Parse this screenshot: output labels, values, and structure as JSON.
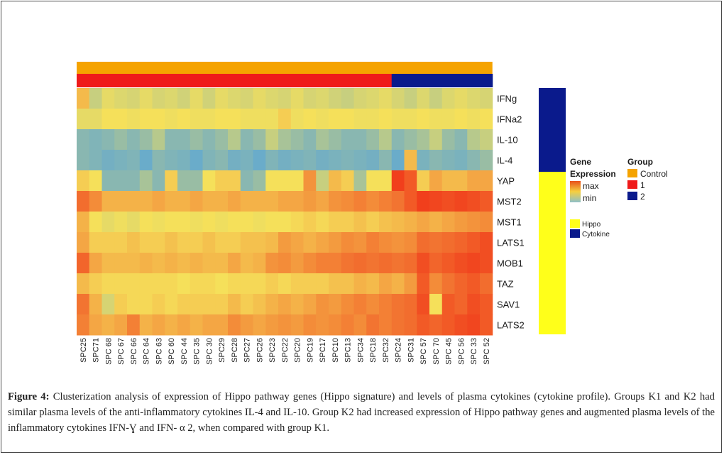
{
  "chart_data": {
    "type": "heatmap",
    "rows": [
      "IFNg",
      "IFNa2",
      "IL-10",
      "IL-4",
      "YAP",
      "MST2",
      "MST1",
      "LATS1",
      "MOB1",
      "TAZ",
      "SAV1",
      "LATS2"
    ],
    "row_category": [
      "Cytokine",
      "Cytokine",
      "Cytokine",
      "Cytokine",
      "Hippo",
      "Hippo",
      "Hippo",
      "Hippo",
      "Hippo",
      "Hippo",
      "Hippo",
      "Hippo"
    ],
    "columns": [
      "SPC25",
      "SPC71",
      "SPC 68",
      "SPC 67",
      "SPC 66",
      "SPC 64",
      "SPC 63",
      "SPC 60",
      "SPC 44",
      "SPC 35",
      "SPC 30",
      "SPC29",
      "SPC28",
      "SPC27",
      "SPC26",
      "SPC23",
      "SPC22",
      "SPC20",
      "SPC19",
      "SPC17",
      "SPC10",
      "SPC13",
      "SPC34",
      "SPC18",
      "SPC32",
      "SPC24",
      "SPC31",
      "SPC 57",
      "SPC 70",
      "SPC 45",
      "SPC 56",
      "SPC 33",
      "SPC 52"
    ],
    "column_group": [
      "1",
      "1",
      "1",
      "1",
      "1",
      "1",
      "1",
      "1",
      "1",
      "1",
      "1",
      "1",
      "1",
      "1",
      "1",
      "1",
      "1",
      "1",
      "1",
      "1",
      "1",
      "1",
      "1",
      "1",
      "1",
      "2",
      "2",
      "2",
      "2",
      "2",
      "2",
      "2",
      "2"
    ],
    "values": [
      [
        0.6,
        0.35,
        0.45,
        0.42,
        0.4,
        0.45,
        0.4,
        0.42,
        0.38,
        0.45,
        0.38,
        0.45,
        0.42,
        0.4,
        0.45,
        0.42,
        0.4,
        0.45,
        0.4,
        0.42,
        0.38,
        0.35,
        0.4,
        0.42,
        0.45,
        0.4,
        0.35,
        0.42,
        0.35,
        0.42,
        0.45,
        0.42,
        0.4
      ],
      [
        0.45,
        0.45,
        0.5,
        0.5,
        0.48,
        0.5,
        0.5,
        0.48,
        0.5,
        0.48,
        0.48,
        0.5,
        0.5,
        0.48,
        0.48,
        0.48,
        0.55,
        0.48,
        0.5,
        0.48,
        0.5,
        0.5,
        0.48,
        0.48,
        0.5,
        0.48,
        0.48,
        0.5,
        0.48,
        0.48,
        0.5,
        0.48,
        0.5
      ],
      [
        0.15,
        0.12,
        0.15,
        0.2,
        0.15,
        0.2,
        0.3,
        0.15,
        0.15,
        0.2,
        0.15,
        0.2,
        0.3,
        0.15,
        0.2,
        0.35,
        0.25,
        0.2,
        0.15,
        0.25,
        0.2,
        0.15,
        0.15,
        0.2,
        0.3,
        0.15,
        0.2,
        0.25,
        0.35,
        0.2,
        0.15,
        0.3,
        0.35
      ],
      [
        0.15,
        0.12,
        0.08,
        0.1,
        0.12,
        0.05,
        0.15,
        0.12,
        0.1,
        0.05,
        0.12,
        0.15,
        0.08,
        0.1,
        0.05,
        0.12,
        0.08,
        0.1,
        0.12,
        0.08,
        0.1,
        0.12,
        0.1,
        0.08,
        0.15,
        0.05,
        0.6,
        0.1,
        0.15,
        0.12,
        0.1,
        0.15,
        0.2
      ],
      [
        0.55,
        0.5,
        0.15,
        0.15,
        0.15,
        0.25,
        0.15,
        0.55,
        0.2,
        0.2,
        0.5,
        0.55,
        0.55,
        0.15,
        0.2,
        0.5,
        0.5,
        0.5,
        0.7,
        0.35,
        0.6,
        0.55,
        0.25,
        0.5,
        0.5,
        0.92,
        0.85,
        0.55,
        0.65,
        0.6,
        0.6,
        0.65,
        0.65
      ],
      [
        0.8,
        0.72,
        0.62,
        0.62,
        0.62,
        0.62,
        0.65,
        0.62,
        0.62,
        0.65,
        0.62,
        0.62,
        0.65,
        0.62,
        0.62,
        0.62,
        0.65,
        0.65,
        0.68,
        0.65,
        0.7,
        0.72,
        0.75,
        0.72,
        0.75,
        0.78,
        0.85,
        0.92,
        0.9,
        0.88,
        0.9,
        0.88,
        0.85
      ],
      [
        0.62,
        0.5,
        0.45,
        0.48,
        0.45,
        0.5,
        0.48,
        0.5,
        0.5,
        0.48,
        0.5,
        0.48,
        0.5,
        0.5,
        0.48,
        0.5,
        0.5,
        0.52,
        0.55,
        0.52,
        0.55,
        0.55,
        0.58,
        0.55,
        0.58,
        0.6,
        0.62,
        0.65,
        0.62,
        0.65,
        0.68,
        0.7,
        0.72
      ],
      [
        0.65,
        0.55,
        0.55,
        0.55,
        0.58,
        0.55,
        0.55,
        0.58,
        0.55,
        0.55,
        0.58,
        0.55,
        0.55,
        0.58,
        0.58,
        0.6,
        0.68,
        0.65,
        0.62,
        0.65,
        0.68,
        0.72,
        0.7,
        0.75,
        0.72,
        0.7,
        0.72,
        0.8,
        0.78,
        0.8,
        0.82,
        0.85,
        0.88
      ],
      [
        0.82,
        0.65,
        0.6,
        0.6,
        0.6,
        0.62,
        0.6,
        0.62,
        0.6,
        0.62,
        0.6,
        0.6,
        0.65,
        0.6,
        0.62,
        0.7,
        0.72,
        0.68,
        0.72,
        0.75,
        0.75,
        0.78,
        0.8,
        0.78,
        0.8,
        0.78,
        0.8,
        0.88,
        0.82,
        0.85,
        0.88,
        0.9,
        0.88
      ],
      [
        0.6,
        0.55,
        0.52,
        0.52,
        0.52,
        0.52,
        0.52,
        0.52,
        0.5,
        0.52,
        0.52,
        0.5,
        0.52,
        0.52,
        0.52,
        0.55,
        0.52,
        0.55,
        0.55,
        0.55,
        0.58,
        0.58,
        0.62,
        0.6,
        0.65,
        0.62,
        0.68,
        0.85,
        0.72,
        0.78,
        0.82,
        0.85,
        0.8
      ],
      [
        0.78,
        0.62,
        0.4,
        0.55,
        0.52,
        0.52,
        0.55,
        0.52,
        0.55,
        0.55,
        0.55,
        0.55,
        0.6,
        0.55,
        0.58,
        0.62,
        0.65,
        0.62,
        0.65,
        0.7,
        0.68,
        0.72,
        0.75,
        0.72,
        0.75,
        0.78,
        0.8,
        0.88,
        0.5,
        0.85,
        0.82,
        0.88,
        0.85
      ],
      [
        0.75,
        0.65,
        0.62,
        0.65,
        0.75,
        0.62,
        0.65,
        0.62,
        0.65,
        0.62,
        0.65,
        0.65,
        0.72,
        0.68,
        0.65,
        0.68,
        0.7,
        0.68,
        0.72,
        0.7,
        0.72,
        0.75,
        0.72,
        0.78,
        0.75,
        0.78,
        0.8,
        0.85,
        0.82,
        0.85,
        0.88,
        0.9,
        0.85
      ]
    ],
    "annotations": {
      "Group": {
        "levels": [
          "Control",
          "1",
          "2"
        ],
        "colors": [
          "#f5a300",
          "#ef1a1a",
          "#0a1a8c"
        ]
      },
      "Gene Expression": {
        "levels": [
          "max",
          "min"
        ]
      },
      "Category": {
        "levels": [
          "Hippo",
          "Cytokine"
        ],
        "colors": [
          "#ffff1a",
          "#0a1a8c"
        ]
      }
    },
    "color_scale": {
      "low": "#5ba6d6",
      "mid": "#f5e05a",
      "high": "#f02010"
    },
    "title": ""
  },
  "legend": {
    "gene_expression_title_1": "Gene",
    "gene_expression_title_2": "Expression",
    "max_label": "max",
    "min_label": "min",
    "group_title": "Group",
    "group_labels": [
      "Control",
      "1",
      "2"
    ],
    "hippo_label": "Hippo",
    "cytokine_label": "Cytokine"
  },
  "caption": {
    "label": "Figure 4:",
    "text": " Clusterization analysis of expression of Hippo pathway genes (Hippo signature) and levels of plasma cytokines (cytokine profile). Groups K1 and K2 had similar plasma levels of the anti-inflammatory cytokines IL-4 and IL-10. Group K2 had increased expression of Hippo pathway genes and augmented plasma levels of the inflammatory cytokines IFN-Ɣ and IFN- α 2, when compared with group K1."
  }
}
